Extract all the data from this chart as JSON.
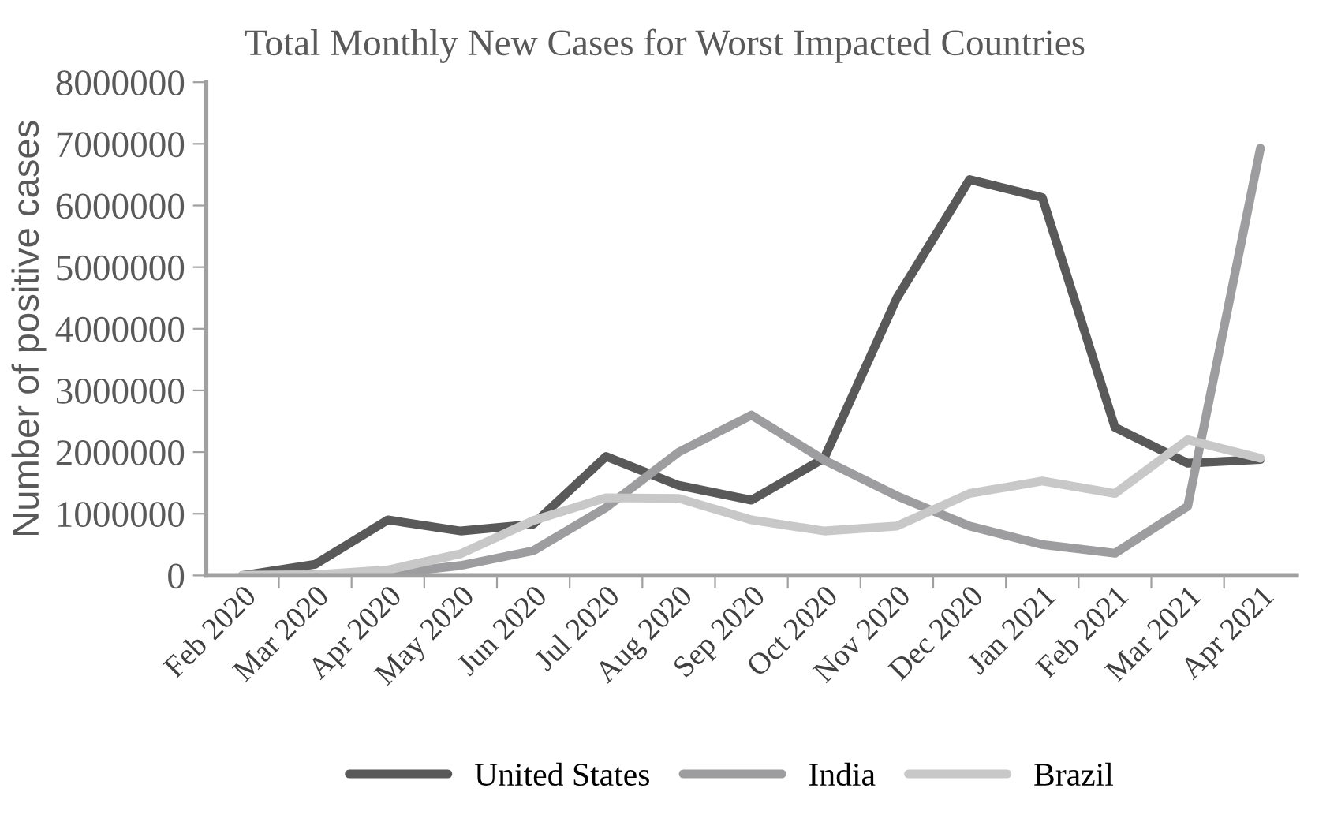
{
  "chart_data": {
    "type": "line",
    "title": "Total Monthly New Cases for Worst Impacted Countries",
    "ylabel": "Number of positive cases",
    "categories": [
      "Feb 2020",
      "Mar 2020",
      "Apr 2020",
      "May 2020",
      "Jun 2020",
      "Jul 2020",
      "Aug 2020",
      "Sep 2020",
      "Oct 2020",
      "Nov 2020",
      "Dec 2020",
      "Jan 2021",
      "Feb 2021",
      "Mar 2021",
      "Apr 2021"
    ],
    "series": [
      {
        "name": "United States",
        "color": "#595959",
        "values": [
          0,
          180000,
          900000,
          720000,
          830000,
          1930000,
          1460000,
          1220000,
          1900000,
          4500000,
          6420000,
          6130000,
          2400000,
          1820000,
          1880000
        ]
      },
      {
        "name": "India",
        "color": "#9d9d9f",
        "values": [
          0,
          10000,
          30000,
          160000,
          400000,
          1100000,
          2000000,
          2600000,
          1870000,
          1290000,
          800000,
          500000,
          360000,
          1120000,
          6930000
        ]
      },
      {
        "name": "Brazil",
        "color": "#c8c8c8",
        "values": [
          0,
          10000,
          90000,
          350000,
          890000,
          1260000,
          1250000,
          900000,
          720000,
          800000,
          1330000,
          1530000,
          1330000,
          2200000,
          1900000
        ]
      }
    ],
    "ylim": [
      0,
      8000000
    ],
    "yticks": [
      0,
      1000000,
      2000000,
      3000000,
      4000000,
      5000000,
      6000000,
      7000000,
      8000000
    ],
    "grid": false,
    "legend": "bottom",
    "marker": "none",
    "line_style": "solid"
  }
}
